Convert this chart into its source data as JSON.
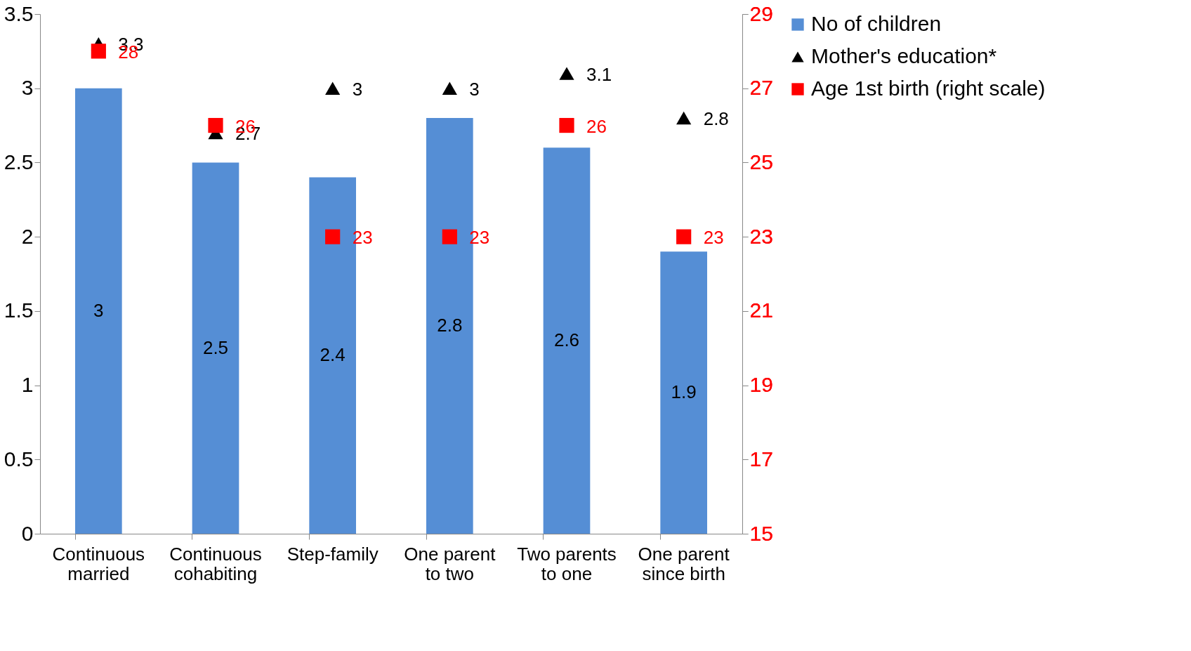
{
  "chart_data": {
    "type": "bar",
    "categories": [
      "Continuous married",
      "Continuous cohabiting",
      "Step-family",
      "One parent to two",
      "Two parents to one",
      "One parent since birth"
    ],
    "series": [
      {
        "name": "No of children",
        "color": "#558ed5",
        "values": [
          3,
          2.5,
          2.4,
          2.8,
          2.6,
          1.9
        ]
      },
      {
        "name": "Mother's education*",
        "type": "scatter",
        "marker": "triangle",
        "color": "#000000",
        "values": [
          3.3,
          2.7,
          3,
          3,
          3.1,
          2.8
        ]
      },
      {
        "name": "Age 1st birth (right scale)",
        "type": "scatter",
        "marker": "square",
        "axis": "y2",
        "color": "#ff0000",
        "values": [
          28,
          26,
          23,
          23,
          26,
          23
        ]
      }
    ],
    "ylim": [
      0,
      3.5
    ],
    "yticks": [
      0,
      0.5,
      1,
      1.5,
      2,
      2.5,
      3,
      3.5
    ],
    "y2lim": [
      15,
      29
    ],
    "y2ticks": [
      15,
      17,
      19,
      21,
      23,
      25,
      27,
      29
    ],
    "data_labels": true,
    "legend": "right",
    "grid": false
  }
}
